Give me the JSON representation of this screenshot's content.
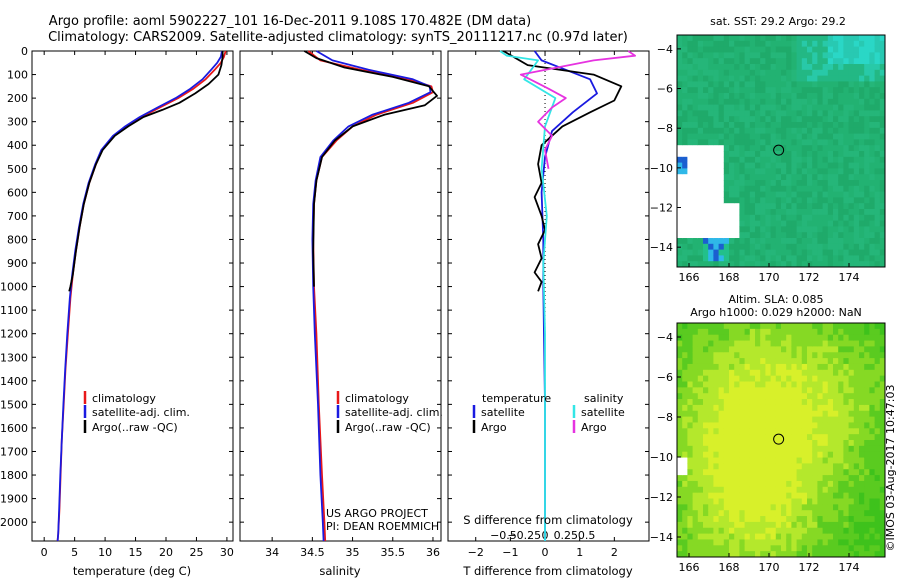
{
  "header": {
    "line1": "Argo profile: aoml 5902227_101 16-Dec-2011 9.108S 170.482E (DM data)",
    "line2": "Climatology: CARS2009. Satellite-adjusted climatology: synTS_20111217.nc (0.97d later)"
  },
  "colors": {
    "climatology": "#e8181a",
    "satellite": "#1a1ae0",
    "argo": "#000000",
    "sal_satellite": "#33e6e6",
    "sal_argo": "#e633e0"
  },
  "chart_data": [
    {
      "type": "line",
      "id": "temperature-profile",
      "xlabel": "temperature (deg C)",
      "ylabel": "",
      "xlim": [
        -2,
        31
      ],
      "ylim": [
        2080,
        0
      ],
      "x_ticks": [
        0,
        5,
        10,
        15,
        20,
        25,
        30
      ],
      "y_ticks": [
        0,
        100,
        200,
        300,
        400,
        500,
        600,
        700,
        800,
        900,
        1000,
        1100,
        1200,
        1300,
        1400,
        1500,
        1600,
        1700,
        1800,
        1900,
        2000
      ],
      "legend": [
        "climatology",
        "satellite-adj. clim.",
        "Argo(..raw -QC)"
      ],
      "series": [
        {
          "name": "climatology",
          "color_key": "climatology",
          "x": [
            29.8,
            29.5,
            29.0,
            28.0,
            26.5,
            24.5,
            22.0,
            19.0,
            16.0,
            13.5,
            11.5,
            9.5,
            8.5,
            7.4,
            6.5,
            5.8,
            5.2,
            4.7,
            4.3,
            3.9,
            3.5,
            3.2,
            2.9,
            2.7,
            2.5,
            2.3,
            2.2
          ],
          "y": [
            0,
            25,
            50,
            80,
            120,
            160,
            200,
            240,
            280,
            320,
            360,
            420,
            480,
            560,
            650,
            750,
            850,
            950,
            1050,
            1200,
            1350,
            1500,
            1650,
            1800,
            1950,
            2050,
            2080
          ]
        },
        {
          "name": "satellite-adj. clim.",
          "color_key": "satellite",
          "x": [
            29.2,
            29.0,
            28.4,
            27.4,
            26.0,
            24.0,
            21.6,
            18.6,
            15.7,
            13.3,
            11.3,
            9.4,
            8.4,
            7.3,
            6.4,
            5.7,
            5.1,
            4.6,
            4.2,
            3.8,
            3.45,
            3.15,
            2.9,
            2.65,
            2.45,
            2.3,
            2.2
          ],
          "y": [
            0,
            25,
            50,
            80,
            120,
            160,
            200,
            240,
            280,
            320,
            360,
            420,
            480,
            560,
            650,
            750,
            850,
            950,
            1050,
            1200,
            1350,
            1500,
            1650,
            1800,
            1950,
            2050,
            2080
          ]
        },
        {
          "name": "Argo(..raw -QC)",
          "color_key": "argo",
          "x": [
            29.3,
            29.3,
            29.1,
            28.6,
            27.0,
            24.8,
            22.2,
            19.4,
            16.3,
            13.8,
            11.6,
            9.6,
            8.5,
            7.4,
            6.5,
            5.8,
            5.2,
            4.7,
            4.3,
            4.1
          ],
          "y": [
            0,
            25,
            60,
            100,
            140,
            180,
            220,
            250,
            280,
            320,
            360,
            420,
            480,
            560,
            650,
            750,
            850,
            950,
            1000,
            1020
          ]
        }
      ]
    },
    {
      "type": "line",
      "id": "salinity-profile",
      "xlabel": "salinity",
      "xlim": [
        33.6,
        36.1
      ],
      "ylim": [
        2080,
        0
      ],
      "x_ticks": [
        34,
        34.5,
        35,
        35.5,
        36
      ],
      "x_tick_labels": [
        "34",
        "34.5",
        "35",
        "35.5",
        "36"
      ],
      "legend": [
        "climatology",
        "satellite-adj. clim.",
        "Argo(..raw -QC)"
      ],
      "annotation": [
        "US ARGO PROJECT",
        "PI: DEAN ROEMMICH"
      ],
      "series": [
        {
          "name": "climatology",
          "color_key": "climatology",
          "x": [
            34.45,
            34.6,
            35.1,
            35.7,
            35.98,
            36.0,
            35.75,
            35.3,
            35.0,
            34.8,
            34.62,
            34.55,
            34.52,
            34.51,
            34.52,
            34.55,
            34.58,
            34.62,
            34.65,
            34.66
          ],
          "y": [
            0,
            40,
            80,
            120,
            150,
            175,
            220,
            270,
            320,
            380,
            450,
            550,
            650,
            800,
            1000,
            1200,
            1500,
            1800,
            2000,
            2080
          ]
        },
        {
          "name": "satellite-adj. clim.",
          "color_key": "satellite",
          "x": [
            34.55,
            34.75,
            35.2,
            35.75,
            35.96,
            35.97,
            35.7,
            35.25,
            34.95,
            34.76,
            34.6,
            34.54,
            34.51,
            34.5,
            34.51,
            34.53,
            34.57,
            34.6,
            34.63,
            34.64
          ],
          "y": [
            0,
            40,
            80,
            120,
            150,
            175,
            220,
            270,
            320,
            380,
            450,
            550,
            650,
            800,
            1000,
            1200,
            1500,
            1800,
            2000,
            2080
          ]
        },
        {
          "name": "Argo(..raw -QC)",
          "color_key": "argo",
          "x": [
            34.4,
            34.55,
            34.9,
            35.5,
            35.95,
            36.05,
            35.9,
            35.4,
            35.0,
            34.78,
            34.62,
            34.55,
            34.52,
            34.51,
            34.52
          ],
          "y": [
            0,
            30,
            70,
            110,
            150,
            190,
            230,
            270,
            320,
            380,
            450,
            550,
            650,
            850,
            1000
          ]
        }
      ]
    },
    {
      "type": "line",
      "id": "difference-profile",
      "xlabel": "T difference from climatology",
      "xlabel_top": "S difference from climatology",
      "xlim": [
        -2.8,
        3.0
      ],
      "ylim": [
        2080,
        0
      ],
      "x_ticks": [
        -2,
        -1,
        0,
        1,
        2
      ],
      "x_top_ticks": [
        -0.5,
        -0.25,
        0,
        0.25,
        0.5
      ],
      "x_top_tick_labels": [
        "−0.5",
        "−0.25",
        "0",
        "0.25",
        "0.5"
      ],
      "legend_temperature": {
        "title": "temperature",
        "items": [
          "satellite",
          "Argo"
        ]
      },
      "legend_salinity": {
        "title": "salinity",
        "items": [
          "satellite",
          "Argo"
        ]
      },
      "series": [
        {
          "name": "temperature satellite",
          "color_key": "satellite",
          "x": [
            -0.3,
            -0.1,
            0.6,
            1.3,
            1.5,
            0.8,
            0.2,
            0.0,
            -0.1,
            -0.05,
            -0.05,
            0.0,
            0.0
          ],
          "y": [
            0,
            40,
            80,
            120,
            180,
            260,
            340,
            450,
            600,
            800,
            1000,
            1500,
            2080
          ]
        },
        {
          "name": "temperature Argo",
          "color_key": "argo",
          "x": [
            -1.2,
            -0.5,
            1.4,
            2.2,
            2.0,
            1.3,
            0.5,
            -0.1,
            -0.2,
            -0.1,
            -0.3,
            -0.1,
            0.0,
            -0.2,
            -0.1,
            -0.3,
            -0.1,
            -0.2
          ],
          "y": [
            0,
            60,
            100,
            150,
            210,
            260,
            320,
            400,
            480,
            560,
            620,
            700,
            760,
            820,
            880,
            940,
            980,
            1020
          ]
        },
        {
          "name": "salinity satellite",
          "color_key": "sal_satellite",
          "x": [
            -1.3,
            -1.1,
            -0.2,
            -0.6,
            0.3,
            0.0,
            -0.1,
            0.05,
            -0.05,
            0.0,
            0.0
          ],
          "y": [
            0,
            20,
            40,
            120,
            200,
            320,
            500,
            700,
            900,
            1200,
            2080
          ]
        },
        {
          "name": "salinity Argo",
          "color_key": "sal_argo",
          "x": [
            2.4,
            2.6,
            1.4,
            -0.7,
            0.1,
            0.6,
            0.2,
            -0.2,
            0.2,
            0.0,
            0.1
          ],
          "y": [
            0,
            20,
            40,
            100,
            160,
            200,
            240,
            300,
            360,
            420,
            500
          ]
        }
      ]
    },
    {
      "type": "heatmap",
      "id": "sst-map",
      "title": "sat. SST: 29.2  Argo: 29.2",
      "xlim": [
        165.4,
        175.8
      ],
      "ylim": [
        -15,
        -3.3
      ],
      "x_ticks": [
        166,
        168,
        170,
        172,
        174
      ],
      "y_ticks": [
        -4,
        -6,
        -8,
        -10,
        -12,
        -14
      ],
      "y_tick_labels": [
        "−4",
        "−6",
        "−8",
        "−10",
        "−12",
        "−14"
      ],
      "marker": {
        "lon": 170.482,
        "lat": -9.108
      }
    },
    {
      "type": "heatmap",
      "id": "sla-map",
      "title_line1": "Altim. SLA: 0.085",
      "title_line2": "Argo h1000: 0.029 h2000: NaN",
      "xlim": [
        165.4,
        175.8
      ],
      "ylim": [
        -15,
        -3.3
      ],
      "x_ticks": [
        166,
        168,
        170,
        172,
        174
      ],
      "y_ticks": [
        -4,
        -6,
        -8,
        -10,
        -12,
        -14
      ],
      "y_tick_labels": [
        "−4",
        "−6",
        "−8",
        "−10",
        "−12",
        "−14"
      ],
      "marker": {
        "lon": 170.482,
        "lat": -9.108
      }
    }
  ],
  "footer": {
    "stamp": "©IMOS 03-Aug-2017 10:47:03"
  }
}
